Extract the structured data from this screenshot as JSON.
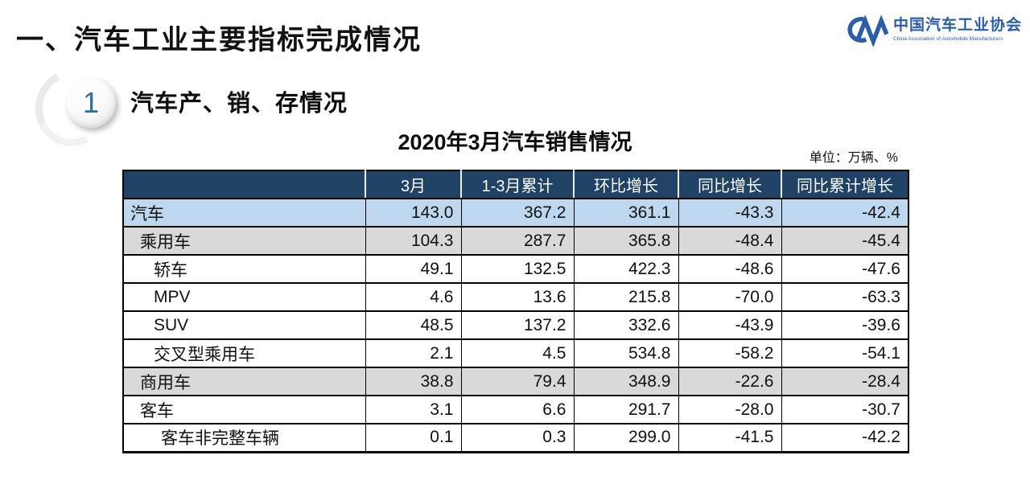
{
  "page": {
    "title": "一、汽车工业主要指标完成情况",
    "section": {
      "number": "1",
      "title": "汽车产、销、存情况"
    },
    "table_title": "2020年3月汽车销售情况",
    "unit_label": "单位：万辆、%"
  },
  "logo": {
    "monogram": "CM",
    "name_cn": "中国汽车工业协会",
    "name_en": "China Association of Automobile Manufacturers"
  },
  "colors": {
    "brand_blue": "#2b5ea7",
    "digit_blue": "#34699e",
    "header_bg": "#1f4266",
    "row_blue": "#bdd7ee",
    "row_gray": "#d9d9d9"
  },
  "table": {
    "columns": [
      "",
      "3月",
      "1-3月累计",
      "环比增长",
      "同比增长",
      "同比累计增长"
    ],
    "rows": [
      {
        "label": "汽车",
        "indent": 0,
        "bg": "blue",
        "values": [
          "143.0",
          "367.2",
          "361.1",
          "-43.3",
          "-42.4"
        ]
      },
      {
        "label": "乘用车",
        "indent": 1,
        "bg": "gray",
        "values": [
          "104.3",
          "287.7",
          "365.8",
          "-48.4",
          "-45.4"
        ]
      },
      {
        "label": "轿车",
        "indent": 2,
        "bg": "white",
        "values": [
          "49.1",
          "132.5",
          "422.3",
          "-48.6",
          "-47.6"
        ]
      },
      {
        "label": "MPV",
        "indent": 2,
        "bg": "white",
        "values": [
          "4.6",
          "13.6",
          "215.8",
          "-70.0",
          "-63.3"
        ]
      },
      {
        "label": "SUV",
        "indent": 2,
        "bg": "white",
        "values": [
          "48.5",
          "137.2",
          "332.6",
          "-43.9",
          "-39.6"
        ]
      },
      {
        "label": "交叉型乘用车",
        "indent": 2,
        "bg": "white",
        "values": [
          "2.1",
          "4.5",
          "534.8",
          "-58.2",
          "-54.1"
        ]
      },
      {
        "label": "商用车",
        "indent": 1,
        "bg": "gray",
        "values": [
          "38.8",
          "79.4",
          "348.9",
          "-22.6",
          "-28.4"
        ]
      },
      {
        "label": "客车",
        "indent": 1,
        "bg": "white",
        "values": [
          "3.1",
          "6.6",
          "291.7",
          "-28.0",
          "-30.7"
        ]
      },
      {
        "label": "客车非完整车辆",
        "indent": 3,
        "bg": "white",
        "values": [
          "0.1",
          "0.3",
          "299.0",
          "-41.5",
          "-42.2"
        ]
      }
    ]
  }
}
